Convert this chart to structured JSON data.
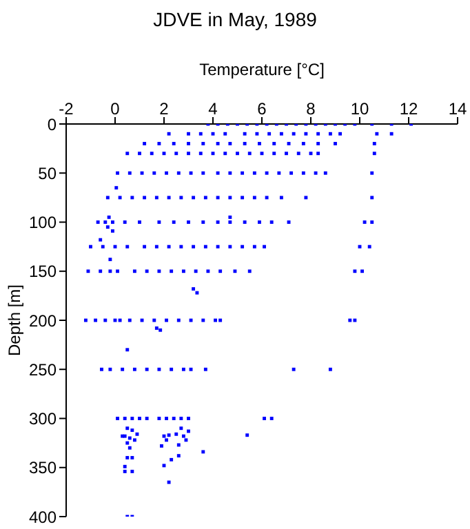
{
  "chart_data": {
    "type": "scatter",
    "title": "JDVE in May, 1989",
    "xlabel": "Temperature [°C]",
    "ylabel": "Depth [m]",
    "xlim": [
      -2,
      14
    ],
    "xticks": [
      -2,
      0,
      2,
      4,
      6,
      8,
      10,
      12,
      14
    ],
    "ylim": [
      400,
      0
    ],
    "yticks": [
      0,
      50,
      100,
      150,
      200,
      250,
      300,
      350,
      400
    ],
    "grid": false,
    "legend": false,
    "marker": "square",
    "series": [
      {
        "color": "#0000ff",
        "x": [
          3.8,
          4.2,
          4.6,
          5.0,
          5.4,
          5.8,
          6.2,
          6.6,
          7.0,
          7.4,
          7.8,
          8.2,
          8.6,
          9.0,
          9.4,
          9.8,
          10.5,
          11.3,
          12.1,
          2.2,
          3.0,
          3.5,
          4.0,
          4.5,
          5.3,
          5.8,
          6.3,
          6.8,
          7.3,
          7.8,
          8.3,
          8.8,
          9.2,
          10.7,
          11.3,
          1.2,
          1.8,
          2.4,
          3.0,
          3.6,
          4.2,
          4.7,
          5.3,
          5.9,
          6.5,
          7.1,
          7.7,
          8.3,
          9.0,
          10.6,
          0.5,
          1.0,
          1.5,
          2.0,
          2.5,
          3.0,
          3.5,
          4.0,
          4.5,
          5.0,
          5.5,
          6.0,
          6.5,
          7.0,
          7.5,
          8.0,
          8.3,
          10.6,
          0.1,
          0.6,
          1.1,
          1.6,
          2.1,
          2.6,
          3.1,
          3.6,
          4.2,
          4.7,
          5.2,
          5.7,
          6.2,
          6.7,
          7.2,
          7.7,
          8.2,
          8.6,
          10.5,
          0.05,
          -0.3,
          0.2,
          0.7,
          1.2,
          1.7,
          2.2,
          2.7,
          3.2,
          3.7,
          4.2,
          4.7,
          5.2,
          5.7,
          6.2,
          6.8,
          7.8,
          10.5,
          -0.25,
          4.7,
          -0.7,
          -0.4,
          -0.1,
          0.4,
          1.0,
          1.8,
          2.4,
          3.0,
          3.6,
          4.2,
          4.7,
          5.3,
          5.9,
          6.4,
          7.1,
          10.2,
          10.5,
          -0.3,
          -0.1,
          -0.6,
          -1.0,
          -0.5,
          0.0,
          0.5,
          1.2,
          1.7,
          2.2,
          2.7,
          3.2,
          3.7,
          4.2,
          4.7,
          5.2,
          5.7,
          6.1,
          10.0,
          10.4,
          -0.2,
          -1.1,
          -0.6,
          -0.2,
          0.1,
          0.8,
          1.3,
          1.8,
          2.3,
          2.8,
          3.3,
          3.8,
          4.3,
          4.9,
          5.5,
          9.8,
          10.1,
          3.2,
          3.35,
          -1.2,
          -0.8,
          -0.4,
          0.0,
          0.2,
          0.6,
          1.1,
          1.6,
          2.1,
          2.6,
          3.1,
          3.6,
          4.1,
          4.3,
          9.6,
          9.8,
          1.7,
          1.85,
          0.5,
          -0.55,
          -0.2,
          0.3,
          0.8,
          1.3,
          1.8,
          2.3,
          2.8,
          3.1,
          3.7,
          7.3,
          8.8,
          0.1,
          0.4,
          0.7,
          1.0,
          1.3,
          1.8,
          2.1,
          2.4,
          2.7,
          3.0,
          6.1,
          6.4,
          0.5,
          0.7,
          0.4,
          0.6,
          0.9,
          0.5,
          0.6,
          0.3,
          0.8,
          2.0,
          2.1,
          1.9,
          2.2,
          2.7,
          2.8,
          2.9,
          2.5,
          2.6,
          3.0,
          3.6,
          5.4,
          0.5,
          0.7,
          2.3,
          2.6,
          0.4,
          2.0,
          0.4,
          0.7,
          2.2,
          0.5,
          0.7
        ],
        "values": [
          0,
          0,
          0,
          0,
          0,
          0,
          0,
          0,
          0,
          0,
          0,
          0,
          0,
          0,
          0,
          0,
          0,
          0,
          0,
          10,
          10,
          10,
          10,
          10,
          10,
          10,
          10,
          10,
          10,
          10,
          10,
          10,
          10,
          10,
          10,
          20,
          20,
          20,
          20,
          20,
          20,
          20,
          20,
          20,
          20,
          20,
          20,
          20,
          20,
          20,
          30,
          30,
          30,
          30,
          30,
          30,
          30,
          30,
          30,
          30,
          30,
          30,
          30,
          30,
          30,
          30,
          30,
          30,
          50,
          50,
          50,
          50,
          50,
          50,
          50,
          50,
          50,
          50,
          50,
          50,
          50,
          50,
          50,
          50,
          50,
          50,
          50,
          65,
          75,
          75,
          75,
          75,
          75,
          75,
          75,
          75,
          75,
          75,
          75,
          75,
          75,
          75,
          75,
          75,
          75,
          95,
          95,
          100,
          100,
          100,
          100,
          100,
          100,
          100,
          100,
          100,
          100,
          100,
          100,
          100,
          100,
          100,
          100,
          100,
          105,
          109,
          118,
          125,
          125,
          125,
          125,
          125,
          125,
          125,
          125,
          125,
          125,
          125,
          125,
          125,
          125,
          125,
          125,
          125,
          138,
          150,
          150,
          150,
          150,
          150,
          150,
          150,
          150,
          150,
          150,
          150,
          150,
          150,
          150,
          150,
          150,
          168,
          172,
          200,
          200,
          200,
          200,
          200,
          200,
          200,
          200,
          200,
          200,
          200,
          200,
          200,
          200,
          200,
          200,
          208,
          210,
          230,
          250,
          250,
          250,
          250,
          250,
          250,
          250,
          250,
          250,
          250,
          250,
          250,
          300,
          300,
          300,
          300,
          300,
          300,
          300,
          300,
          300,
          300,
          300,
          300,
          310,
          312,
          318,
          320,
          316,
          325,
          330,
          318,
          322,
          318,
          322,
          328,
          317,
          310,
          318,
          322,
          316,
          327,
          313,
          334,
          317,
          340,
          340,
          342,
          338,
          349,
          348,
          354,
          354,
          365,
          400,
          400
        ]
      }
    ]
  }
}
